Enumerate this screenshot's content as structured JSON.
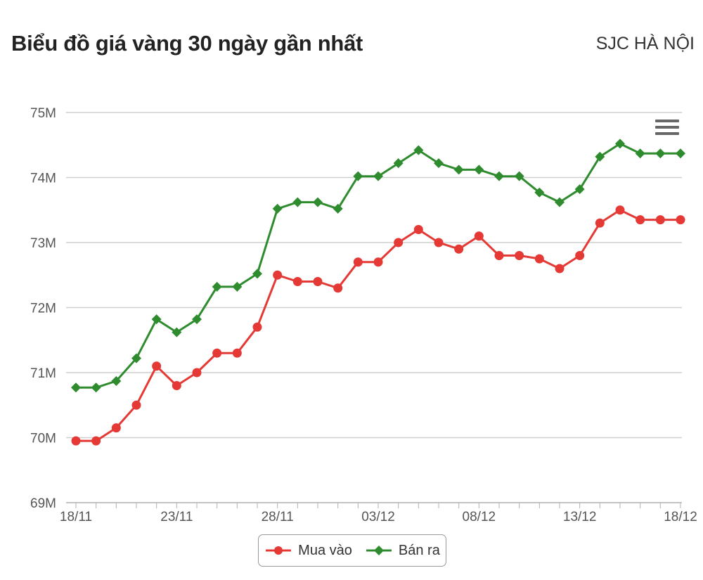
{
  "header": {
    "title": "Biểu đồ giá vàng 30 ngày gần nhất",
    "subtitle": "SJC HÀ NỘI"
  },
  "chart_data": {
    "type": "line",
    "title": "Biểu đồ giá vàng 30 ngày gần nhất",
    "subtitle": "SJC HÀ NỘI",
    "x": [
      "18/11",
      "19/11",
      "20/11",
      "21/11",
      "22/11",
      "23/11",
      "24/11",
      "25/11",
      "26/11",
      "27/11",
      "28/11",
      "29/11",
      "30/11",
      "01/12",
      "02/12",
      "03/12",
      "04/12",
      "05/12",
      "06/12",
      "07/12",
      "08/12",
      "09/12",
      "10/12",
      "11/12",
      "12/12",
      "13/12",
      "14/12",
      "15/12",
      "16/12",
      "17/12",
      "18/12"
    ],
    "x_tick_labels": [
      "18/11",
      "23/11",
      "28/11",
      "03/12",
      "08/12",
      "13/12",
      "18/12"
    ],
    "y_tick_labels": [
      "69M",
      "70M",
      "71M",
      "72M",
      "73M",
      "74M",
      "75M"
    ],
    "ylim": [
      69,
      75
    ],
    "yunit": "M",
    "grid": true,
    "legend_position": "bottom",
    "series": [
      {
        "name": "Mua vào",
        "color": "#e53935",
        "marker": "circle",
        "values": [
          69.95,
          69.95,
          70.15,
          70.5,
          71.1,
          70.8,
          71.0,
          71.3,
          71.3,
          71.7,
          72.5,
          72.4,
          72.4,
          72.3,
          72.7,
          72.7,
          73.0,
          73.2,
          73.0,
          72.9,
          73.1,
          72.8,
          72.8,
          72.75,
          72.6,
          72.8,
          73.3,
          73.5,
          73.35,
          73.35,
          73.35
        ]
      },
      {
        "name": "Bán ra",
        "color": "#2e8b2e",
        "marker": "diamond",
        "values": [
          70.77,
          70.77,
          70.87,
          71.22,
          71.82,
          71.62,
          71.82,
          72.32,
          72.32,
          72.52,
          73.52,
          73.62,
          73.62,
          73.52,
          74.02,
          74.02,
          74.22,
          74.42,
          74.22,
          74.12,
          74.12,
          74.02,
          74.02,
          73.77,
          73.62,
          73.82,
          74.32,
          74.52,
          74.37,
          74.37,
          74.37
        ]
      }
    ]
  },
  "legend": [
    {
      "label": "Mua vào",
      "color": "#e53935",
      "marker": "circle"
    },
    {
      "label": "Bán ra",
      "color": "#2e8b2e",
      "marker": "diamond"
    }
  ],
  "icons": {
    "menu": "hamburger-menu-icon"
  }
}
